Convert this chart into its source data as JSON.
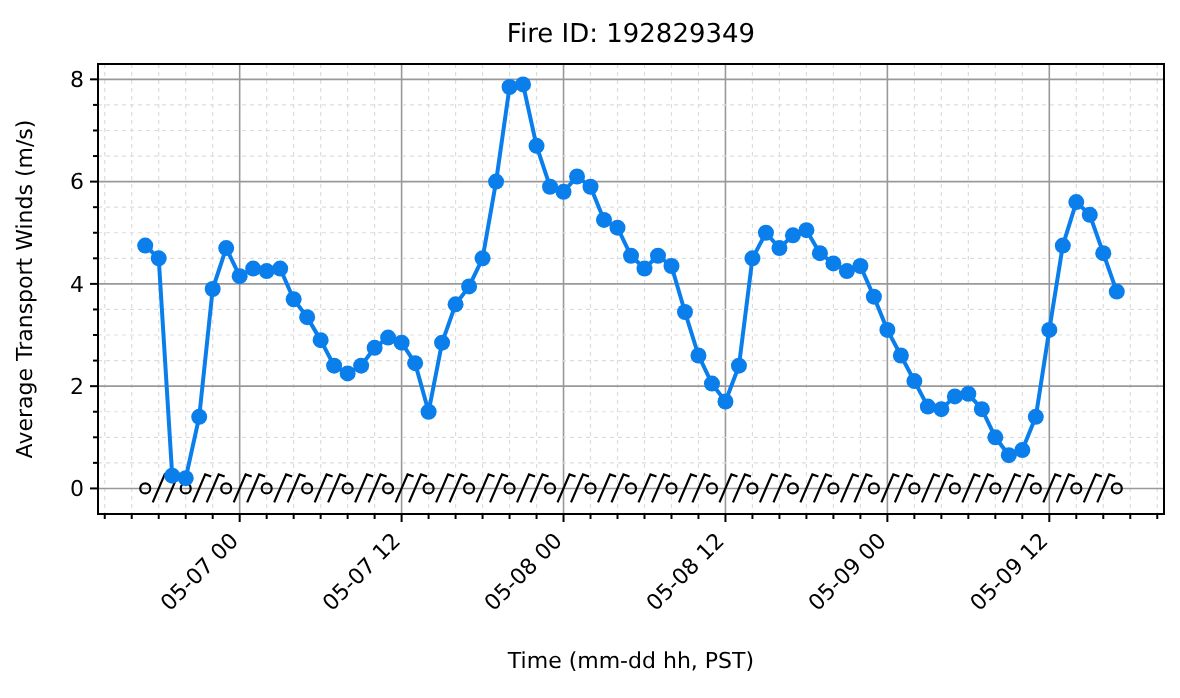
{
  "chart_data": {
    "type": "line",
    "title": "Fire ID: 192829349",
    "xlabel": "Time (mm-dd hh, PST)",
    "ylabel": "Average Transport Winds (m/s)",
    "categories": [
      null,
      null,
      null,
      null,
      null,
      null,
      null,
      "05-07 00",
      null,
      null,
      null,
      null,
      null,
      null,
      null,
      null,
      null,
      null,
      null,
      "05-07 12",
      null,
      null,
      null,
      null,
      null,
      null,
      null,
      null,
      null,
      null,
      null,
      "05-08 00",
      null,
      null,
      null,
      null,
      null,
      null,
      null,
      null,
      null,
      null,
      null,
      "05-08 12",
      null,
      null,
      null,
      null,
      null,
      null,
      null,
      null,
      null,
      null,
      null,
      "05-09 00",
      null,
      null,
      null,
      null,
      null,
      null,
      null,
      null,
      null,
      null,
      null,
      "05-09 12",
      null,
      null,
      null,
      null,
      null
    ],
    "series": [
      {
        "color": "#0a7fec",
        "values": [
          4.75,
          4.5,
          0.25,
          0.2,
          1.4,
          3.9,
          4.7,
          4.15,
          4.3,
          4.25,
          4.3,
          3.7,
          3.35,
          2.9,
          2.4,
          2.25,
          2.4,
          2.75,
          2.95,
          2.85,
          2.45,
          1.5,
          2.85,
          3.6,
          3.95,
          4.5,
          6.0,
          7.85,
          7.9,
          6.7,
          5.9,
          5.8,
          6.1,
          5.9,
          5.25,
          5.1,
          4.55,
          4.3,
          4.55,
          4.35,
          3.45,
          2.6,
          2.05,
          1.7,
          2.4,
          4.5,
          5.0,
          4.7,
          4.95,
          5.05,
          4.6,
          4.4,
          4.25,
          4.35,
          3.75,
          3.1,
          2.6,
          2.1,
          1.6,
          1.55,
          1.8,
          1.85,
          1.55,
          1.0,
          0.65,
          0.75,
          1.4,
          3.1,
          4.75,
          5.6,
          5.35,
          4.6,
          3.85
        ]
      }
    ],
    "marker": "circle",
    "line_style": "solid",
    "grid": true,
    "ylim": [
      -0.5,
      8.3
    ],
    "yticks": [
      0,
      {
        "value": 0.5,
        "label": null
      },
      {
        "value": 1,
        "label": null
      },
      {
        "value": 1.5,
        "label": null
      },
      2,
      {
        "value": 2.5,
        "label": null
      },
      {
        "value": 3,
        "label": null
      },
      {
        "value": 3.5,
        "label": null
      },
      4,
      {
        "value": 4.5,
        "label": null
      },
      {
        "value": 5,
        "label": null
      },
      {
        "value": 5.5,
        "label": null
      },
      6,
      {
        "value": 6.5,
        "label": null
      },
      {
        "value": 7,
        "label": null
      },
      {
        "value": 7.5,
        "label": null
      },
      8
    ]
  }
}
